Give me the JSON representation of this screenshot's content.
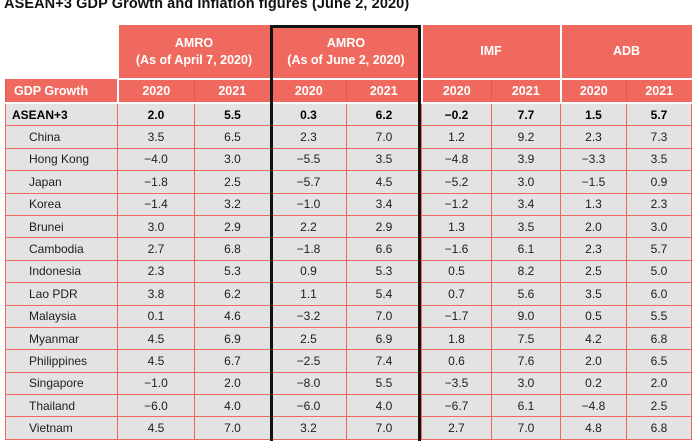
{
  "title": "ASEAN+3 GDP Growth and Inflation figures (June 2, 2020)",
  "table": {
    "section_label": "GDP Growth",
    "groups": [
      {
        "name": "AMRO",
        "subtitle": "(As of April 7, 2020)",
        "highlighted": false
      },
      {
        "name": "AMRO",
        "subtitle": "(As of June 2, 2020)",
        "highlighted": true
      },
      {
        "name": "IMF",
        "subtitle": "",
        "highlighted": false
      },
      {
        "name": "ADB",
        "subtitle": "",
        "highlighted": false
      }
    ],
    "year_headers": [
      "2020",
      "2021",
      "2020",
      "2021",
      "2020",
      "2021",
      "2020",
      "2021"
    ]
  },
  "colors": {
    "header_bg": "#F0695E",
    "header_text": "#FFFFFF",
    "row_bg": "#E3E3E3",
    "grid_line": "#F0695E",
    "year_divider": "#E2584A",
    "highlight_border": "#121212",
    "body_text": "#1D1D1D"
  },
  "chart_data": {
    "type": "table",
    "title": "ASEAN+3 GDP Growth and Inflation figures (June 2, 2020)",
    "section": "GDP Growth",
    "unit": "percent",
    "columns": [
      {
        "group": "AMRO (As of April 7, 2020)",
        "year": "2020"
      },
      {
        "group": "AMRO (As of April 7, 2020)",
        "year": "2021"
      },
      {
        "group": "AMRO (As of June 2, 2020)",
        "year": "2020"
      },
      {
        "group": "AMRO (As of June 2, 2020)",
        "year": "2021"
      },
      {
        "group": "IMF",
        "year": "2020"
      },
      {
        "group": "IMF",
        "year": "2021"
      },
      {
        "group": "ADB",
        "year": "2020"
      },
      {
        "group": "ADB",
        "year": "2021"
      }
    ],
    "highlighted_group": "AMRO (As of June 2, 2020)",
    "rows": [
      {
        "economy": "ASEAN+3",
        "is_aggregate": true,
        "values": [
          2.0,
          5.5,
          0.3,
          6.2,
          -0.2,
          7.7,
          1.5,
          5.7
        ]
      },
      {
        "economy": "China",
        "is_aggregate": false,
        "values": [
          3.5,
          6.5,
          2.3,
          7.0,
          1.2,
          9.2,
          2.3,
          7.3
        ]
      },
      {
        "economy": "Hong Kong",
        "is_aggregate": false,
        "values": [
          -4.0,
          3.0,
          -5.5,
          3.5,
          -4.8,
          3.9,
          -3.3,
          3.5
        ]
      },
      {
        "economy": "Japan",
        "is_aggregate": false,
        "values": [
          -1.8,
          2.5,
          -5.7,
          4.5,
          -5.2,
          3.0,
          -1.5,
          0.9
        ]
      },
      {
        "economy": "Korea",
        "is_aggregate": false,
        "values": [
          -1.4,
          3.2,
          -1.0,
          3.4,
          -1.2,
          3.4,
          1.3,
          2.3
        ]
      },
      {
        "economy": "Brunei",
        "is_aggregate": false,
        "values": [
          3.0,
          2.9,
          2.2,
          2.9,
          1.3,
          3.5,
          2.0,
          3.0
        ]
      },
      {
        "economy": "Cambodia",
        "is_aggregate": false,
        "values": [
          2.7,
          6.8,
          -1.8,
          6.6,
          -1.6,
          6.1,
          2.3,
          5.7
        ]
      },
      {
        "economy": "Indonesia",
        "is_aggregate": false,
        "values": [
          2.3,
          5.3,
          0.9,
          5.3,
          0.5,
          8.2,
          2.5,
          5.0
        ]
      },
      {
        "economy": "Lao PDR",
        "is_aggregate": false,
        "values": [
          3.8,
          6.2,
          1.1,
          5.4,
          0.7,
          5.6,
          3.5,
          6.0
        ]
      },
      {
        "economy": "Malaysia",
        "is_aggregate": false,
        "values": [
          0.1,
          4.6,
          -3.2,
          7.0,
          -1.7,
          9.0,
          0.5,
          5.5
        ]
      },
      {
        "economy": "Myanmar",
        "is_aggregate": false,
        "values": [
          4.5,
          6.9,
          2.5,
          6.9,
          1.8,
          7.5,
          4.2,
          6.8
        ]
      },
      {
        "economy": "Philippines",
        "is_aggregate": false,
        "values": [
          4.5,
          6.7,
          -2.5,
          7.4,
          0.6,
          7.6,
          2.0,
          6.5
        ]
      },
      {
        "economy": "Singapore",
        "is_aggregate": false,
        "values": [
          -1.0,
          2.0,
          -8.0,
          5.5,
          -3.5,
          3.0,
          0.2,
          2.0
        ]
      },
      {
        "economy": "Thailand",
        "is_aggregate": false,
        "values": [
          -6.0,
          4.0,
          -6.0,
          4.0,
          -6.7,
          6.1,
          -4.8,
          2.5
        ]
      },
      {
        "economy": "Vietnam",
        "is_aggregate": false,
        "values": [
          4.5,
          7.0,
          3.2,
          7.0,
          2.7,
          7.0,
          4.8,
          6.8
        ]
      }
    ]
  }
}
